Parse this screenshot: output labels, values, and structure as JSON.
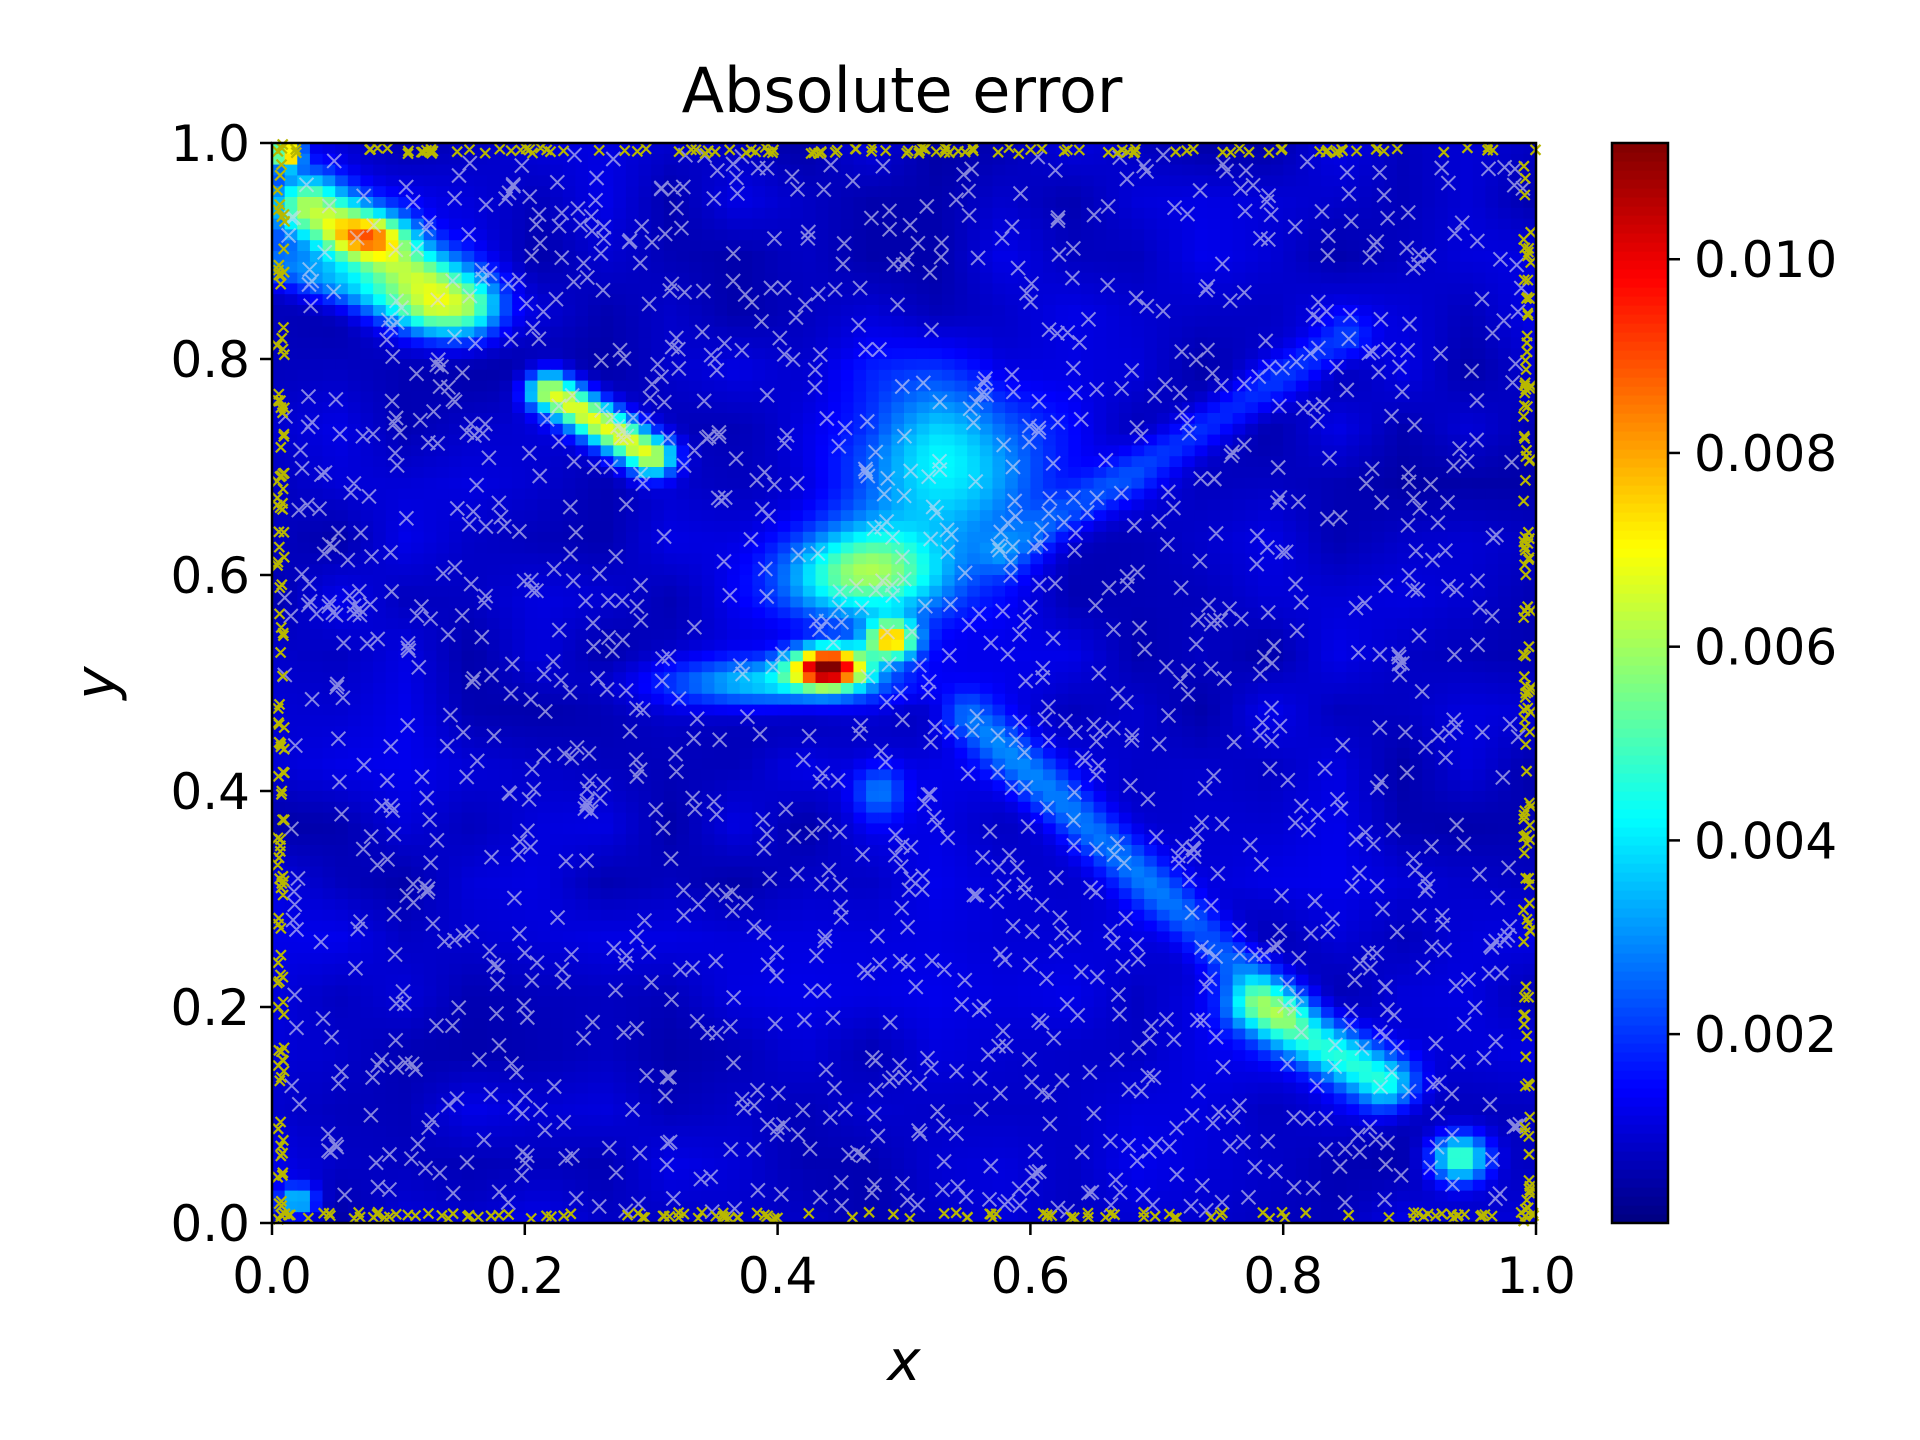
{
  "chart_data": {
    "type": "heatmap",
    "title": "Absolute error",
    "xlabel": "x",
    "ylabel": "y",
    "xlim": [
      0.0,
      1.0
    ],
    "ylim": [
      0.0,
      1.0
    ],
    "x_ticks": [
      "0.0",
      "0.2",
      "0.4",
      "0.6",
      "0.8",
      "1.0"
    ],
    "y_ticks": [
      "0.0",
      "0.2",
      "0.4",
      "0.6",
      "0.8",
      "1.0"
    ],
    "colormap": "jet",
    "colorbar": {
      "min": 5e-05,
      "max": 0.0112,
      "ticks": [
        "0.002",
        "0.004",
        "0.006",
        "0.008",
        "0.010"
      ],
      "tick_values": [
        0.002,
        0.004,
        0.006,
        0.008,
        0.01
      ]
    },
    "background_level": 0.0009,
    "error_features": [
      {
        "kind": "peak",
        "x": 0.44,
        "y": 0.515,
        "value": 0.0112
      },
      {
        "kind": "peak",
        "x": 0.49,
        "y": 0.54,
        "value": 0.0085
      },
      {
        "kind": "peak",
        "x": 0.08,
        "y": 0.915,
        "value": 0.008
      },
      {
        "kind": "peak",
        "x": 0.26,
        "y": 0.74,
        "value": 0.0083
      },
      {
        "kind": "peak",
        "x": 0.012,
        "y": 0.99,
        "value": 0.0085
      },
      {
        "kind": "region",
        "x": 0.53,
        "y": 0.72,
        "value": 0.0045
      },
      {
        "kind": "region",
        "x": 0.45,
        "y": 0.62,
        "value": 0.0068
      },
      {
        "kind": "region",
        "x": 0.4,
        "y": 0.5,
        "value": 0.0045
      },
      {
        "kind": "region",
        "x": 0.83,
        "y": 0.155,
        "value": 0.0055
      },
      {
        "kind": "region",
        "x": 0.94,
        "y": 0.06,
        "value": 0.0055
      },
      {
        "kind": "region",
        "x": 0.02,
        "y": 0.02,
        "value": 0.004
      }
    ],
    "markers": [
      {
        "name": "interior collocation points",
        "symbol": "x",
        "color": "#d8d8f0",
        "count": 1400
      },
      {
        "name": "boundary points",
        "symbol": "x",
        "color": "#b8b800",
        "count": 480
      }
    ]
  }
}
